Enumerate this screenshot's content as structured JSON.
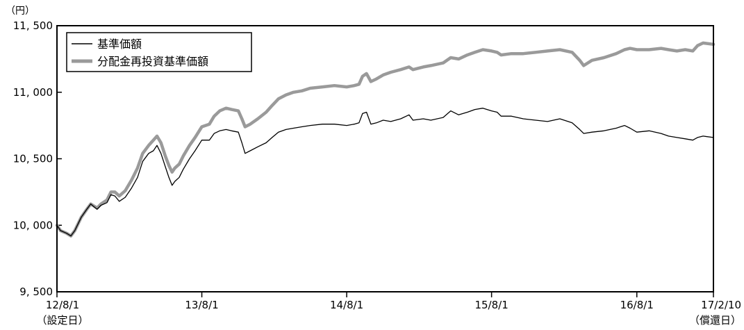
{
  "chart_data": {
    "type": "line",
    "unit_label": "（円）",
    "ylim": [
      9500,
      11500
    ],
    "yticks": [
      9500,
      10000,
      10500,
      11000,
      11500
    ],
    "ytick_labels": [
      "9, 500",
      "10, 000",
      "10, 500",
      "11, 000",
      "11, 500"
    ],
    "xlim": [
      "2012-08-01",
      "2017-02-10"
    ],
    "xticks": [
      {
        "date": "2012-08-01",
        "label": "12/8/1",
        "sublabel": "（設定日）"
      },
      {
        "date": "2013-08-01",
        "label": "13/8/1",
        "sublabel": ""
      },
      {
        "date": "2014-08-01",
        "label": "14/8/1",
        "sublabel": ""
      },
      {
        "date": "2015-08-01",
        "label": "15/8/1",
        "sublabel": ""
      },
      {
        "date": "2016-08-01",
        "label": "16/8/1",
        "sublabel": ""
      },
      {
        "date": "2017-02-10",
        "label": "17/2/10",
        "sublabel": "（償還日）"
      }
    ],
    "grid": false,
    "legend_position": "top-left",
    "series": [
      {
        "name": "基準価額",
        "color": "#000000",
        "points": [
          [
            "2012-08-01",
            10000
          ],
          [
            "2012-08-10",
            9960
          ],
          [
            "2012-08-25",
            9940
          ],
          [
            "2012-09-05",
            9920
          ],
          [
            "2012-09-15",
            9960
          ],
          [
            "2012-10-01",
            10060
          ],
          [
            "2012-10-15",
            10120
          ],
          [
            "2012-10-25",
            10160
          ],
          [
            "2012-11-10",
            10120
          ],
          [
            "2012-11-20",
            10150
          ],
          [
            "2012-12-05",
            10170
          ],
          [
            "2012-12-15",
            10230
          ],
          [
            "2012-12-25",
            10220
          ],
          [
            "2013-01-05",
            10180
          ],
          [
            "2013-01-20",
            10210
          ],
          [
            "2013-02-05",
            10280
          ],
          [
            "2013-02-20",
            10360
          ],
          [
            "2013-03-05",
            10480
          ],
          [
            "2013-03-20",
            10540
          ],
          [
            "2013-04-01",
            10560
          ],
          [
            "2013-04-10",
            10600
          ],
          [
            "2013-04-20",
            10540
          ],
          [
            "2013-05-01",
            10440
          ],
          [
            "2013-05-10",
            10360
          ],
          [
            "2013-05-18",
            10300
          ],
          [
            "2013-05-25",
            10330
          ],
          [
            "2013-06-05",
            10360
          ],
          [
            "2013-06-15",
            10420
          ],
          [
            "2013-07-01",
            10500
          ],
          [
            "2013-07-15",
            10560
          ],
          [
            "2013-08-01",
            10640
          ],
          [
            "2013-08-20",
            10640
          ],
          [
            "2013-09-01",
            10690
          ],
          [
            "2013-09-15",
            10710
          ],
          [
            "2013-10-01",
            10720
          ],
          [
            "2013-10-15",
            10710
          ],
          [
            "2013-11-01",
            10700
          ],
          [
            "2013-11-10",
            10620
          ],
          [
            "2013-11-18",
            10540
          ],
          [
            "2013-12-01",
            10560
          ],
          [
            "2013-12-20",
            10590
          ],
          [
            "2014-01-10",
            10620
          ],
          [
            "2014-01-25",
            10660
          ],
          [
            "2014-02-10",
            10700
          ],
          [
            "2014-03-01",
            10720
          ],
          [
            "2014-03-20",
            10730
          ],
          [
            "2014-04-10",
            10740
          ],
          [
            "2014-05-01",
            10750
          ],
          [
            "2014-06-01",
            10760
          ],
          [
            "2014-07-01",
            10760
          ],
          [
            "2014-08-01",
            10750
          ],
          [
            "2014-08-20",
            10760
          ],
          [
            "2014-09-01",
            10770
          ],
          [
            "2014-09-10",
            10840
          ],
          [
            "2014-09-20",
            10850
          ],
          [
            "2014-10-01",
            10760
          ],
          [
            "2014-10-15",
            10770
          ],
          [
            "2014-11-01",
            10790
          ],
          [
            "2014-11-20",
            10780
          ],
          [
            "2014-12-15",
            10800
          ],
          [
            "2015-01-05",
            10830
          ],
          [
            "2015-01-15",
            10790
          ],
          [
            "2015-02-10",
            10800
          ],
          [
            "2015-03-01",
            10790
          ],
          [
            "2015-04-01",
            10810
          ],
          [
            "2015-04-20",
            10860
          ],
          [
            "2015-05-10",
            10830
          ],
          [
            "2015-06-01",
            10850
          ],
          [
            "2015-06-20",
            10870
          ],
          [
            "2015-07-10",
            10880
          ],
          [
            "2015-08-01",
            10860
          ],
          [
            "2015-08-15",
            10850
          ],
          [
            "2015-08-25",
            10820
          ],
          [
            "2015-09-20",
            10820
          ],
          [
            "2015-10-20",
            10800
          ],
          [
            "2015-11-20",
            10790
          ],
          [
            "2015-12-20",
            10780
          ],
          [
            "2016-01-20",
            10800
          ],
          [
            "2016-02-20",
            10770
          ],
          [
            "2016-03-10",
            10720
          ],
          [
            "2016-03-20",
            10690
          ],
          [
            "2016-04-10",
            10700
          ],
          [
            "2016-05-10",
            10710
          ],
          [
            "2016-06-10",
            10730
          ],
          [
            "2016-07-01",
            10750
          ],
          [
            "2016-07-15",
            10730
          ],
          [
            "2016-08-01",
            10700
          ],
          [
            "2016-09-01",
            10710
          ],
          [
            "2016-10-01",
            10690
          ],
          [
            "2016-10-20",
            10670
          ],
          [
            "2016-11-10",
            10660
          ],
          [
            "2016-12-01",
            10650
          ],
          [
            "2016-12-20",
            10640
          ],
          [
            "2017-01-01",
            10660
          ],
          [
            "2017-01-15",
            10670
          ],
          [
            "2017-02-10",
            10660
          ]
        ]
      },
      {
        "name": "分配金再投資基準価額",
        "color": "#9a9a9a",
        "points": [
          [
            "2012-08-01",
            10000
          ],
          [
            "2012-08-10",
            9960
          ],
          [
            "2012-08-25",
            9940
          ],
          [
            "2012-09-05",
            9920
          ],
          [
            "2012-09-15",
            9960
          ],
          [
            "2012-10-01",
            10060
          ],
          [
            "2012-10-15",
            10120
          ],
          [
            "2012-10-25",
            10160
          ],
          [
            "2012-11-10",
            10130
          ],
          [
            "2012-11-20",
            10160
          ],
          [
            "2012-12-05",
            10190
          ],
          [
            "2012-12-15",
            10250
          ],
          [
            "2012-12-25",
            10250
          ],
          [
            "2013-01-05",
            10220
          ],
          [
            "2013-01-20",
            10260
          ],
          [
            "2013-02-05",
            10340
          ],
          [
            "2013-02-20",
            10430
          ],
          [
            "2013-03-05",
            10540
          ],
          [
            "2013-03-20",
            10600
          ],
          [
            "2013-04-01",
            10640
          ],
          [
            "2013-04-10",
            10670
          ],
          [
            "2013-04-20",
            10620
          ],
          [
            "2013-05-01",
            10520
          ],
          [
            "2013-05-10",
            10450
          ],
          [
            "2013-05-18",
            10400
          ],
          [
            "2013-05-25",
            10430
          ],
          [
            "2013-06-05",
            10460
          ],
          [
            "2013-06-15",
            10520
          ],
          [
            "2013-07-01",
            10600
          ],
          [
            "2013-07-15",
            10660
          ],
          [
            "2013-08-01",
            10740
          ],
          [
            "2013-08-20",
            10760
          ],
          [
            "2013-09-01",
            10820
          ],
          [
            "2013-09-15",
            10860
          ],
          [
            "2013-10-01",
            10880
          ],
          [
            "2013-10-15",
            10870
          ],
          [
            "2013-11-01",
            10860
          ],
          [
            "2013-11-10",
            10800
          ],
          [
            "2013-11-18",
            10740
          ],
          [
            "2013-12-01",
            10760
          ],
          [
            "2013-12-20",
            10800
          ],
          [
            "2014-01-10",
            10850
          ],
          [
            "2014-01-25",
            10900
          ],
          [
            "2014-02-10",
            10950
          ],
          [
            "2014-03-01",
            10980
          ],
          [
            "2014-03-20",
            11000
          ],
          [
            "2014-04-10",
            11010
          ],
          [
            "2014-05-01",
            11030
          ],
          [
            "2014-06-01",
            11040
          ],
          [
            "2014-07-01",
            11050
          ],
          [
            "2014-08-01",
            11040
          ],
          [
            "2014-08-20",
            11050
          ],
          [
            "2014-09-01",
            11060
          ],
          [
            "2014-09-10",
            11120
          ],
          [
            "2014-09-20",
            11140
          ],
          [
            "2014-10-01",
            11080
          ],
          [
            "2014-10-15",
            11100
          ],
          [
            "2014-11-01",
            11130
          ],
          [
            "2014-11-20",
            11150
          ],
          [
            "2014-12-15",
            11170
          ],
          [
            "2015-01-05",
            11190
          ],
          [
            "2015-01-15",
            11170
          ],
          [
            "2015-02-10",
            11190
          ],
          [
            "2015-03-01",
            11200
          ],
          [
            "2015-04-01",
            11220
          ],
          [
            "2015-04-20",
            11260
          ],
          [
            "2015-05-10",
            11250
          ],
          [
            "2015-06-01",
            11280
          ],
          [
            "2015-06-20",
            11300
          ],
          [
            "2015-07-10",
            11320
          ],
          [
            "2015-08-01",
            11310
          ],
          [
            "2015-08-15",
            11300
          ],
          [
            "2015-08-25",
            11280
          ],
          [
            "2015-09-20",
            11290
          ],
          [
            "2015-10-20",
            11290
          ],
          [
            "2015-11-20",
            11300
          ],
          [
            "2015-12-20",
            11310
          ],
          [
            "2016-01-20",
            11320
          ],
          [
            "2016-02-20",
            11300
          ],
          [
            "2016-03-10",
            11240
          ],
          [
            "2016-03-20",
            11200
          ],
          [
            "2016-04-10",
            11240
          ],
          [
            "2016-05-10",
            11260
          ],
          [
            "2016-06-10",
            11290
          ],
          [
            "2016-07-01",
            11320
          ],
          [
            "2016-07-15",
            11330
          ],
          [
            "2016-08-01",
            11320
          ],
          [
            "2016-09-01",
            11320
          ],
          [
            "2016-10-01",
            11330
          ],
          [
            "2016-10-20",
            11320
          ],
          [
            "2016-11-10",
            11310
          ],
          [
            "2016-12-01",
            11320
          ],
          [
            "2016-12-20",
            11310
          ],
          [
            "2017-01-01",
            11350
          ],
          [
            "2017-01-15",
            11370
          ],
          [
            "2017-02-10",
            11360
          ]
        ]
      }
    ]
  }
}
